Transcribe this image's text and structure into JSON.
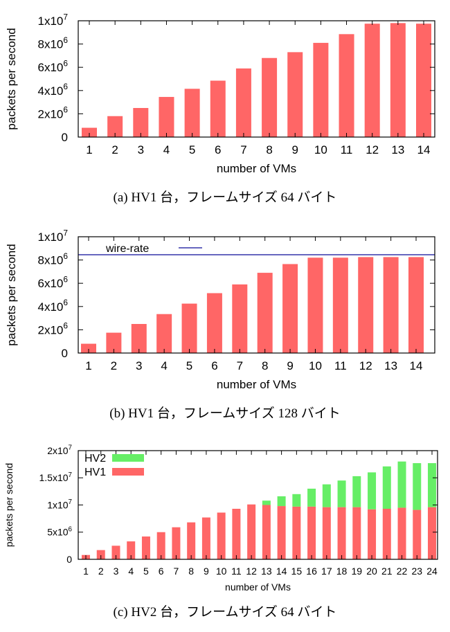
{
  "chart_data": [
    {
      "type": "bar",
      "caption": "(a) HV1 台，フレームサイズ 64 バイト",
      "xlabel": "number of VMs",
      "ylabel": "packets per second",
      "ylim": [
        0,
        10000000
      ],
      "yticks": [
        {
          "value": 0,
          "base": "0",
          "exp": ""
        },
        {
          "value": 2000000,
          "base": "2x10",
          "exp": "6"
        },
        {
          "value": 4000000,
          "base": "4x10",
          "exp": "6"
        },
        {
          "value": 6000000,
          "base": "6x10",
          "exp": "6"
        },
        {
          "value": 8000000,
          "base": "8x10",
          "exp": "6"
        },
        {
          "value": 10000000,
          "base": "1x10",
          "exp": "7"
        }
      ],
      "categories": [
        "1",
        "2",
        "3",
        "4",
        "5",
        "6",
        "7",
        "8",
        "9",
        "10",
        "11",
        "12",
        "13",
        "14"
      ],
      "series": [
        {
          "color": "#ff6666",
          "values": [
            800000,
            1800000,
            2500000,
            3450000,
            4150000,
            4850000,
            5900000,
            6800000,
            7300000,
            8100000,
            8850000,
            9750000,
            9800000,
            9750000
          ]
        }
      ],
      "grid": false
    },
    {
      "type": "bar",
      "caption": "(b) HV1 台，フレームサイズ 128 バイト",
      "xlabel": "number of VMs",
      "ylabel": "packets per second",
      "ylim": [
        0,
        10000000
      ],
      "yticks": [
        {
          "value": 0,
          "base": "0",
          "exp": ""
        },
        {
          "value": 2000000,
          "base": "2x10",
          "exp": "6"
        },
        {
          "value": 4000000,
          "base": "4x10",
          "exp": "6"
        },
        {
          "value": 6000000,
          "base": "6x10",
          "exp": "6"
        },
        {
          "value": 8000000,
          "base": "8x10",
          "exp": "6"
        },
        {
          "value": 10000000,
          "base": "1x10",
          "exp": "7"
        }
      ],
      "categories": [
        "1",
        "2",
        "3",
        "4",
        "5",
        "6",
        "7",
        "8",
        "9",
        "10",
        "11",
        "12",
        "13",
        "14"
      ],
      "series": [
        {
          "color": "#ff6666",
          "values": [
            800000,
            1750000,
            2500000,
            3350000,
            4250000,
            5150000,
            5900000,
            6900000,
            7650000,
            8200000,
            8200000,
            8250000,
            8250000,
            8250000
          ]
        }
      ],
      "reference_line": {
        "name": "wire-rate",
        "value": 8450000,
        "color": "#3333aa"
      },
      "legend_position": "top-left",
      "grid": false
    },
    {
      "type": "bar",
      "stacked": true,
      "caption": "(c) HV2 台，フレームサイズ 64 バイト",
      "xlabel": "number of VMs",
      "ylabel": "packets per second",
      "ylim": [
        0,
        20000000
      ],
      "yticks": [
        {
          "value": 0,
          "base": "0",
          "exp": ""
        },
        {
          "value": 5000000,
          "base": "5x10",
          "exp": "6"
        },
        {
          "value": 10000000,
          "base": "1x10",
          "exp": "7"
        },
        {
          "value": 15000000,
          "base": "1.5x10",
          "exp": "7"
        },
        {
          "value": 20000000,
          "base": "2x10",
          "exp": "7"
        }
      ],
      "categories": [
        "1",
        "2",
        "3",
        "4",
        "5",
        "6",
        "7",
        "8",
        "9",
        "10",
        "11",
        "12",
        "13",
        "14",
        "15",
        "16",
        "17",
        "18",
        "19",
        "20",
        "21",
        "22",
        "23",
        "24"
      ],
      "series": [
        {
          "name": "HV1",
          "color": "#ff6666",
          "values": [
            800000,
            1700000,
            2500000,
            3300000,
            4200000,
            5000000,
            5900000,
            6800000,
            7700000,
            8600000,
            9300000,
            10100000,
            10000000,
            9800000,
            9700000,
            9700000,
            9600000,
            9600000,
            9600000,
            9200000,
            9300000,
            9500000,
            9100000,
            9600000
          ]
        },
        {
          "name": "HV2",
          "color": "#66ee66",
          "values": [
            0,
            0,
            0,
            0,
            0,
            0,
            0,
            0,
            0,
            0,
            0,
            0,
            800000,
            1800000,
            2300000,
            3300000,
            4200000,
            4900000,
            5700000,
            6800000,
            7800000,
            8500000,
            8600000,
            8100000
          ]
        }
      ],
      "legend_position": "top-left",
      "grid": false
    }
  ]
}
